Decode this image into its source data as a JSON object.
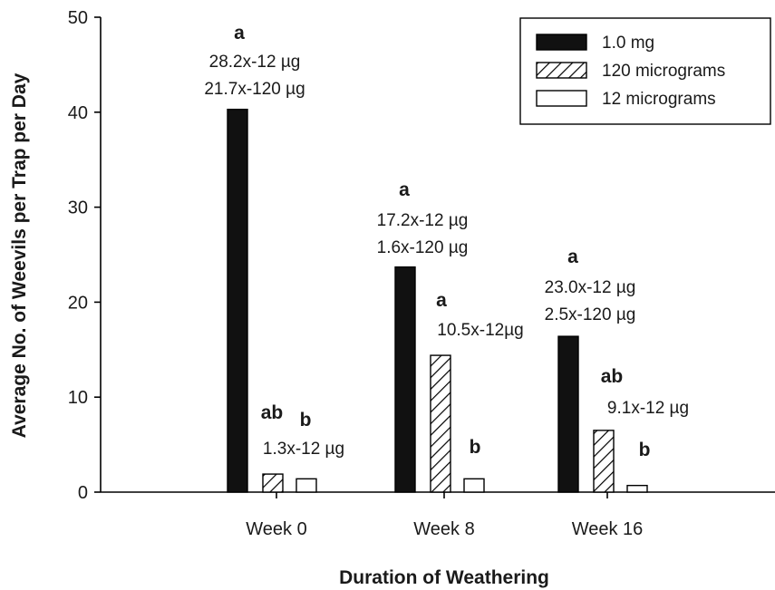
{
  "chart_data": {
    "type": "bar",
    "xlabel": "Duration of Weathering",
    "ylabel": "Average No. of Weevils per Trap per Day",
    "ylim": [
      0,
      50
    ],
    "yticks": [
      0,
      10,
      20,
      30,
      40,
      50
    ],
    "categories": [
      "Week 0",
      "Week 8",
      "Week 16"
    ],
    "series": [
      {
        "name": "1.0 mg",
        "pattern": "solid",
        "values": [
          40.3,
          23.7,
          16.4
        ]
      },
      {
        "name": "120 micrograms",
        "pattern": "hatch",
        "values": [
          1.9,
          14.4,
          6.5
        ]
      },
      {
        "name": "12 micrograms",
        "pattern": "empty",
        "values": [
          1.4,
          1.4,
          0.7
        ]
      }
    ],
    "annotations": [
      {
        "category": 0,
        "series": 0,
        "letter": "a",
        "lines": [
          "28.2x-12 µg",
          "21.7x-120 µg"
        ]
      },
      {
        "category": 0,
        "series": 1,
        "letter": "ab",
        "lines": []
      },
      {
        "category": 0,
        "series": 2,
        "letter": "b",
        "lines": []
      },
      {
        "category": 0,
        "series": 1,
        "letter": "",
        "lines": [
          "1.3x-12 µg"
        ]
      },
      {
        "category": 1,
        "series": 0,
        "letter": "a",
        "lines": [
          "17.2x-12 µg",
          "1.6x-120 µg"
        ]
      },
      {
        "category": 1,
        "series": 1,
        "letter": "a",
        "lines": [
          "10.5x-12µg"
        ]
      },
      {
        "category": 1,
        "series": 2,
        "letter": "b",
        "lines": []
      },
      {
        "category": 2,
        "series": 0,
        "letter": "a",
        "lines": [
          "23.0x-12 µg",
          "2.5x-120 µg"
        ]
      },
      {
        "category": 2,
        "series": 1,
        "letter": "ab",
        "lines": [
          "9.1x-12 µg"
        ]
      },
      {
        "category": 2,
        "series": 2,
        "letter": "b",
        "lines": []
      }
    ],
    "legend_position": "top-right",
    "grid": false
  }
}
